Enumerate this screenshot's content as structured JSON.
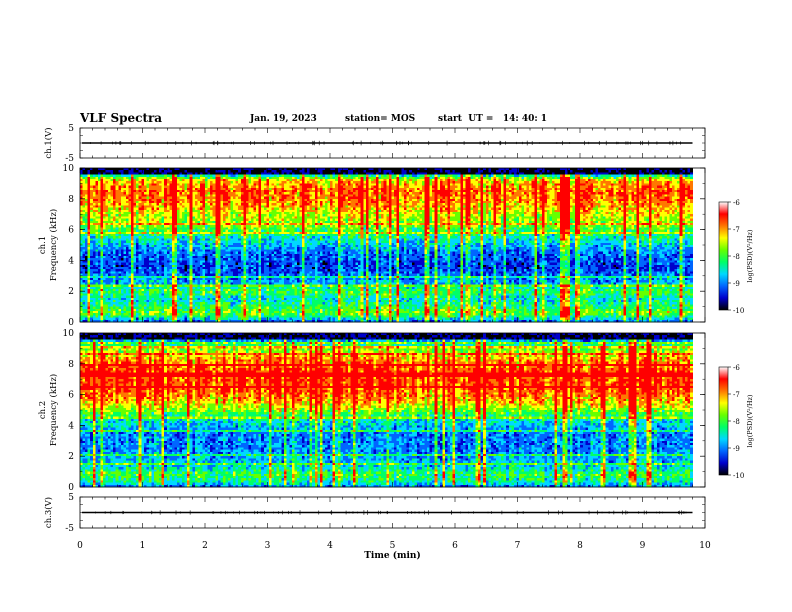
{
  "header": {
    "title": "VLF Spectra",
    "date": "Jan. 19, 2023",
    "station": "station= MOS",
    "start": "start  UT =   14: 40: 1"
  },
  "colors": {
    "background": "#ffffff",
    "axis": "#000000",
    "colormap": [
      "#000000",
      "#0000cc",
      "#0066ff",
      "#00d8ff",
      "#00ff66",
      "#66ff00",
      "#ffff00",
      "#ff7700",
      "#ff0000",
      "#ffffff"
    ]
  },
  "chart_data": [
    {
      "type": "line",
      "name": "ch1-voltage",
      "ylabel": "ch.1(V)",
      "yticks": [
        "5",
        "-5"
      ],
      "ylim": [
        -5,
        5
      ],
      "xlim": [
        0,
        10
      ],
      "trace_level": 0,
      "trace_end": 9.8
    },
    {
      "type": "heatmap",
      "name": "ch1-spectrogram",
      "ylabel": "ch.1",
      "ylabel2": "Frequency (kHz)",
      "ylim": [
        0,
        10
      ],
      "yticks": [
        "0",
        "2",
        "4",
        "6",
        "8",
        "10"
      ],
      "xlim": [
        0,
        10
      ],
      "data_end": 9.8,
      "colorbar": {
        "label": "log(PSD)(V²/Hz)",
        "range": [
          -10,
          -6
        ],
        "ticks": [
          "-6",
          "-7",
          "-8",
          "-9",
          "-10"
        ]
      },
      "profile": [
        [
          0,
          0.25
        ],
        [
          0.3,
          0.45
        ],
        [
          0.6,
          0.62
        ],
        [
          1.0,
          0.5
        ],
        [
          1.5,
          0.42
        ],
        [
          2.0,
          0.55
        ],
        [
          2.5,
          0.35
        ],
        [
          3.5,
          0.22
        ],
        [
          4.5,
          0.28
        ],
        [
          5.5,
          0.45
        ],
        [
          6.2,
          0.6
        ],
        [
          7.0,
          0.7
        ],
        [
          7.8,
          0.82
        ],
        [
          8.5,
          0.86
        ],
        [
          9.2,
          0.75
        ],
        [
          9.6,
          0.35
        ],
        [
          10,
          0.05
        ]
      ]
    },
    {
      "type": "heatmap",
      "name": "ch2-spectrogram",
      "ylabel": "ch.2",
      "ylabel2": "Frequency (kHz)",
      "ylim": [
        0,
        10
      ],
      "yticks": [
        "0",
        "2",
        "4",
        "6",
        "8",
        "10"
      ],
      "xlim": [
        0,
        10
      ],
      "data_end": 9.8,
      "colorbar": {
        "label": "log(PSD)(V²/Hz)",
        "range": [
          -10,
          -6
        ],
        "ticks": [
          "-6",
          "-7",
          "-8",
          "-9",
          "-10"
        ]
      },
      "profile": [
        [
          0,
          0.25
        ],
        [
          0.3,
          0.45
        ],
        [
          0.8,
          0.55
        ],
        [
          1.3,
          0.4
        ],
        [
          1.8,
          0.35
        ],
        [
          2.5,
          0.3
        ],
        [
          3.5,
          0.3
        ],
        [
          4.5,
          0.45
        ],
        [
          5.2,
          0.7
        ],
        [
          6.0,
          0.85
        ],
        [
          6.8,
          0.9
        ],
        [
          7.5,
          0.9
        ],
        [
          8.3,
          0.8
        ],
        [
          9.0,
          0.6
        ],
        [
          9.6,
          0.3
        ],
        [
          10,
          0.05
        ]
      ]
    },
    {
      "type": "line",
      "name": "ch3-voltage",
      "ylabel": "ch.3(V)",
      "yticks": [
        "5",
        "-5"
      ],
      "ylim": [
        -5,
        5
      ],
      "xlim": [
        0,
        10
      ],
      "trace_level": 0,
      "trace_end": 9.8
    }
  ],
  "x_axis": {
    "label": "Time (min)",
    "range": [
      0,
      10
    ],
    "ticks": [
      "0",
      "1",
      "2",
      "3",
      "4",
      "5",
      "6",
      "7",
      "8",
      "9",
      "10"
    ]
  }
}
